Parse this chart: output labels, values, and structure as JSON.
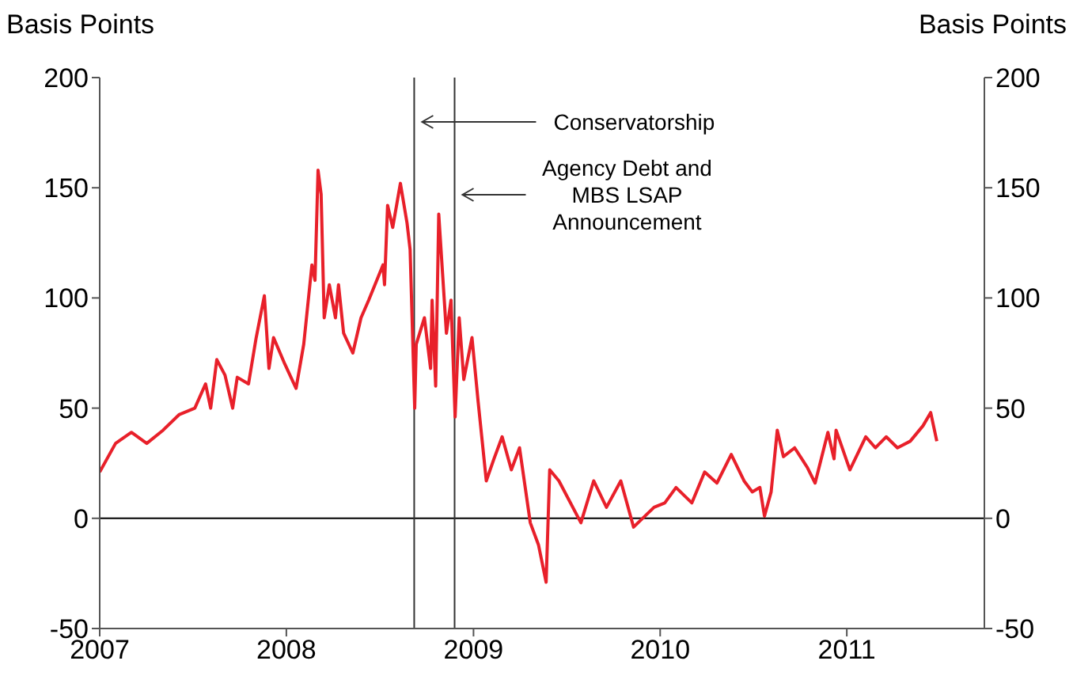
{
  "chart_data": {
    "type": "line",
    "ylabel": "Basis Points",
    "y2label": "Basis Points",
    "x": [
      "2007-01-01",
      "2007-02-01",
      "2007-03-04",
      "2007-04-03",
      "2007-05-05",
      "2007-06-05",
      "2007-07-06",
      "2007-07-27",
      "2007-08-06",
      "2007-08-18",
      "2007-09-03",
      "2007-09-18",
      "2007-09-27",
      "2007-10-19",
      "2007-11-03",
      "2007-11-19",
      "2007-11-28",
      "2007-12-07",
      "2007-12-29",
      "2008-01-20",
      "2008-02-04",
      "2008-02-20",
      "2008-02-26",
      "2008-03-03",
      "2008-03-09",
      "2008-03-15",
      "2008-03-25",
      "2008-04-06",
      "2008-04-12",
      "2008-04-22",
      "2008-05-10",
      "2008-05-26",
      "2008-06-10",
      "2008-07-08",
      "2008-07-11",
      "2008-07-17",
      "2008-07-27",
      "2008-08-11",
      "2008-08-24",
      "2008-08-30",
      "2008-09-08",
      "2008-09-11",
      "2008-09-27",
      "2008-10-09",
      "2008-10-12",
      "2008-10-19",
      "2008-10-25",
      "2008-11-09",
      "2008-11-18",
      "2008-11-26",
      "2008-12-04",
      "2008-12-13",
      "2008-12-29",
      "2009-01-10",
      "2009-01-26",
      "2009-02-10",
      "2009-02-26",
      "2009-03-16",
      "2009-04-01",
      "2009-04-22",
      "2009-05-08",
      "2009-05-23",
      "2009-05-30",
      "2009-06-17",
      "2009-07-30",
      "2009-08-24",
      "2009-09-18",
      "2009-10-16",
      "2009-11-10",
      "2009-12-20",
      "2010-01-10",
      "2010-02-01",
      "2010-03-04",
      "2010-03-29",
      "2010-04-22",
      "2010-05-20",
      "2010-06-14",
      "2010-06-30",
      "2010-07-15",
      "2010-07-24",
      "2010-08-06",
      "2010-08-18",
      "2010-08-30",
      "2010-09-21",
      "2010-10-16",
      "2010-10-31",
      "2010-11-25",
      "2010-12-07",
      "2010-12-11",
      "2011-01-07",
      "2011-02-07",
      "2011-02-26",
      "2011-03-19",
      "2011-04-10",
      "2011-05-05",
      "2011-05-30",
      "2011-06-14",
      "2011-06-26"
    ],
    "series": [
      {
        "color": "#e8202a",
        "values": [
          21,
          34,
          39,
          34,
          40,
          47,
          50,
          61,
          50,
          72,
          65,
          50,
          64,
          61,
          82,
          101,
          68,
          82,
          70,
          59,
          79,
          115,
          108,
          158,
          147,
          91,
          106,
          91,
          106,
          84,
          75,
          91,
          99,
          115,
          106,
          142,
          132,
          152,
          134,
          122,
          50,
          79,
          91,
          68,
          99,
          60,
          138,
          84,
          99,
          46,
          91,
          63,
          82,
          53,
          17,
          27,
          37,
          22,
          32,
          -2,
          -12,
          -29,
          22,
          17,
          -2,
          17,
          5,
          17,
          -4,
          5,
          7,
          14,
          7,
          21,
          16,
          29,
          17,
          12,
          14,
          1,
          12,
          40,
          28,
          32,
          23,
          16,
          39,
          27,
          40,
          22,
          37,
          32,
          37,
          32,
          35,
          42,
          48,
          35
        ]
      }
    ],
    "xlim": [
      "2007-01-01",
      "2011-09-27"
    ],
    "xticks": [
      "2007",
      "2008",
      "2009",
      "2010",
      "2011"
    ],
    "ylim": [
      -50,
      200
    ],
    "yticks": [
      -50,
      0,
      50,
      100,
      150,
      200
    ],
    "y2lim": [
      -50,
      200
    ],
    "y2ticks": [
      -50,
      0,
      50,
      100,
      150,
      200
    ],
    "ref_lines": [
      {
        "axis": "y",
        "value": 0,
        "color": "#000000"
      },
      {
        "axis": "x",
        "value": "2008-09-07",
        "label": "Conservatorship",
        "color": "#333333"
      },
      {
        "axis": "x",
        "value": "2008-11-25",
        "label": "Agency Debt and MBS LSAP Announcement",
        "color": "#333333"
      }
    ]
  }
}
